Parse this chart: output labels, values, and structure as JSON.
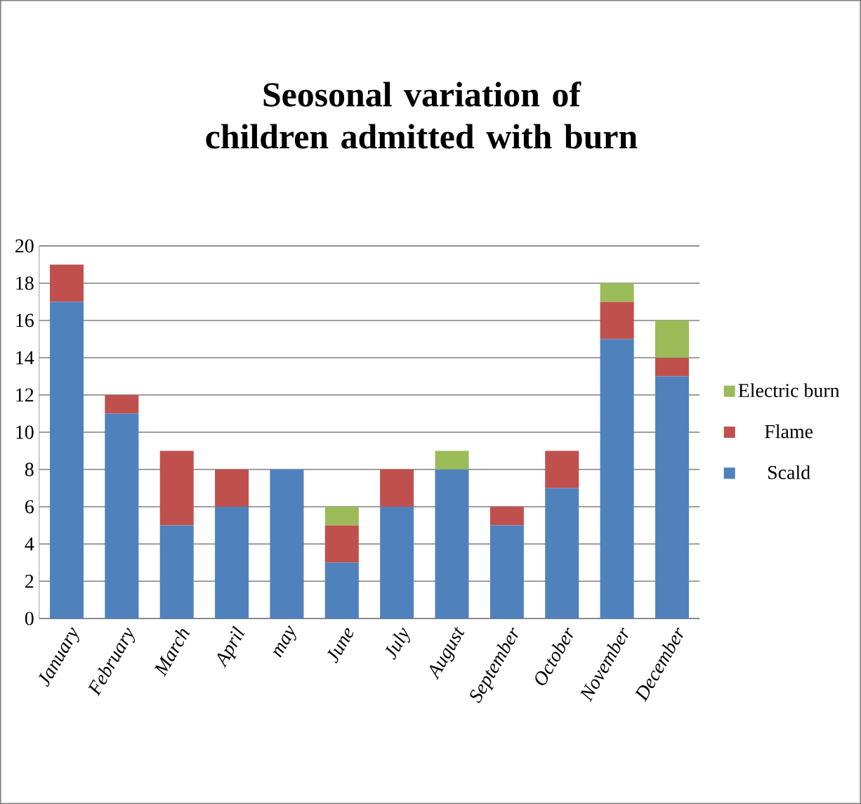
{
  "chart_data": {
    "type": "bar",
    "title": "Seosonal variation of children admitted with burn",
    "categories": [
      "January",
      "February",
      "March",
      "April",
      "may",
      "June",
      "July",
      "August",
      "September",
      "October",
      "November",
      "December"
    ],
    "series": [
      {
        "name": "Scald",
        "color": "#4f81bd",
        "values": [
          17,
          11,
          5,
          6,
          8,
          3,
          6,
          8,
          5,
          7,
          15,
          13
        ]
      },
      {
        "name": "Flame",
        "color": "#c0504d",
        "values": [
          2,
          1,
          4,
          2,
          0,
          2,
          2,
          0,
          1,
          2,
          2,
          1
        ]
      },
      {
        "name": "Electric burn",
        "color": "#9bbb59",
        "values": [
          0,
          0,
          0,
          0,
          0,
          1,
          0,
          1,
          0,
          0,
          1,
          2
        ]
      }
    ],
    "stacked": true,
    "ylim": [
      0,
      20
    ],
    "yticks": [
      0,
      2,
      4,
      6,
      8,
      10,
      12,
      14,
      16,
      18,
      20
    ],
    "grid": "y",
    "legend": "right"
  }
}
